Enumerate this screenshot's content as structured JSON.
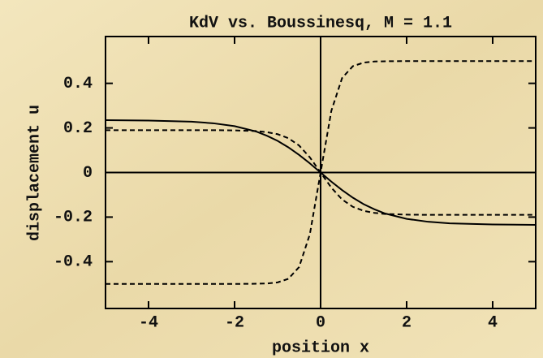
{
  "chart_data": {
    "type": "line",
    "title": "KdV vs. Boussinesq, M = 1.1",
    "xlabel": "position x",
    "ylabel": "displacement u",
    "x": [
      -5,
      -4,
      -3,
      -2.5,
      -2,
      -1.5,
      -1.25,
      -1,
      -0.75,
      -0.5,
      -0.25,
      0,
      0.25,
      0.5,
      0.75,
      1,
      1.25,
      1.5,
      2,
      2.5,
      3,
      4,
      5
    ],
    "series": [
      {
        "color": "#000000",
        "style": "solid",
        "values": [
          0.235,
          0.233,
          0.228,
          0.221,
          0.208,
          0.184,
          0.165,
          0.142,
          0.113,
          0.079,
          0.041,
          0,
          -0.041,
          -0.079,
          -0.113,
          -0.142,
          -0.165,
          -0.184,
          -0.208,
          -0.221,
          -0.228,
          -0.233,
          -0.235
        ]
      },
      {
        "color": "#000000",
        "style": "dashed",
        "values": [
          0.19,
          0.19,
          0.19,
          0.19,
          0.189,
          0.186,
          0.181,
          0.172,
          0.154,
          0.121,
          0.068,
          0,
          -0.068,
          -0.121,
          -0.154,
          -0.172,
          -0.181,
          -0.186,
          -0.189,
          -0.19,
          -0.19,
          -0.19,
          -0.19
        ]
      },
      {
        "color": "#000000",
        "style": "dashed",
        "values": [
          -0.5,
          -0.5,
          -0.5,
          -0.5,
          -0.5,
          -0.499,
          -0.498,
          -0.493,
          -0.477,
          -0.424,
          -0.277,
          0,
          0.277,
          0.424,
          0.477,
          0.493,
          0.498,
          0.499,
          0.5,
          0.5,
          0.5,
          0.5,
          0.5
        ]
      }
    ],
    "xlim": [
      -5,
      5
    ],
    "ylim": [
      -0.61,
      0.61
    ],
    "xticks": [
      -4,
      -2,
      0,
      2,
      4
    ],
    "yticks": [
      -0.4,
      -0.2,
      0,
      0.2,
      0.4
    ],
    "axes_at_origin": true
  }
}
